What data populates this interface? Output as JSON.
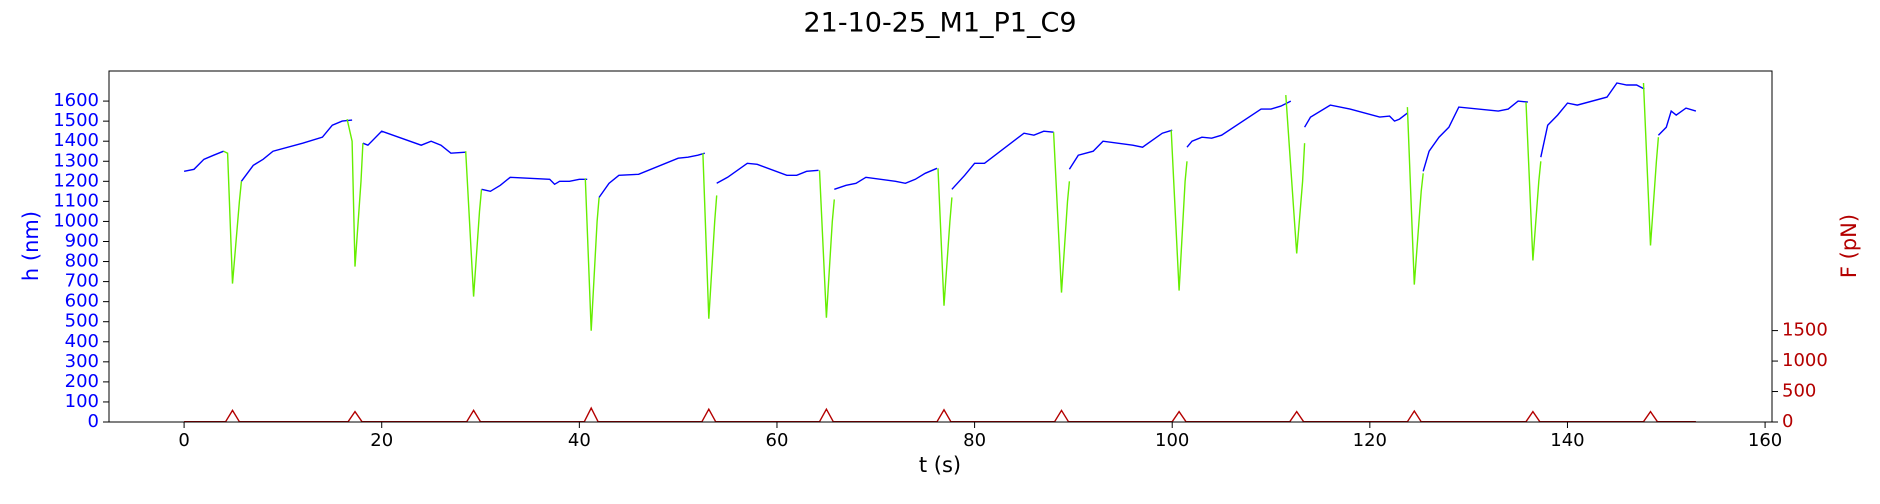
{
  "chart_data": {
    "type": "line",
    "title": "21-10-25_M1_P1_C9",
    "x_label": "t (s)",
    "y_label": "h (nm)",
    "y2_label": "F (pN)",
    "xlim": [
      -7.6,
      160.7
    ],
    "xticks": [
      0,
      20,
      40,
      60,
      80,
      100,
      120,
      140,
      160
    ],
    "ylim": [
      0,
      1750
    ],
    "yticks": [
      0,
      100,
      200,
      300,
      400,
      500,
      600,
      700,
      800,
      900,
      1000,
      1100,
      1200,
      1300,
      1400,
      1500,
      1600
    ],
    "y2lim": [
      0,
      5760
    ],
    "y2ticks": [
      0,
      500,
      1000,
      1500
    ],
    "series": [
      {
        "color": "#0000ff",
        "x": [
          0,
          1,
          2,
          3,
          4,
          null,
          5.8,
          7,
          8,
          9,
          12,
          14,
          15,
          16,
          17,
          null,
          18.1,
          18.6,
          20,
          24,
          25,
          26,
          27,
          28.5,
          null,
          30.1,
          31,
          32,
          33,
          37,
          37.5,
          38,
          39,
          40,
          40.8,
          null,
          42,
          43,
          44,
          46,
          50,
          51,
          52,
          52.7,
          null,
          53.9,
          55,
          57,
          58,
          61,
          62,
          63,
          64.2,
          null,
          65.8,
          67,
          68,
          69,
          72,
          73,
          74,
          75,
          76.2,
          null,
          77.7,
          79,
          80,
          81,
          85,
          86,
          87,
          88,
          null,
          89.6,
          90.5,
          92,
          93,
          96,
          97,
          99,
          100,
          null,
          101.5,
          102,
          103,
          104,
          105,
          109,
          110,
          111,
          112,
          null,
          113.4,
          114,
          116,
          118,
          121,
          122,
          122.5,
          123,
          123.8,
          null,
          125.4,
          126,
          127,
          128,
          129,
          133,
          134,
          135,
          136,
          null,
          137.3,
          138,
          139,
          140,
          141,
          144,
          145,
          146,
          147,
          147.8,
          null,
          149.2,
          150,
          150.5,
          151,
          152,
          153
        ],
        "values": [
          1250,
          1260,
          1310,
          1330,
          1350,
          null,
          1200,
          1280,
          1310,
          1350,
          1390,
          1420,
          1480,
          1500,
          1505,
          null,
          1390,
          1380,
          1450,
          1380,
          1400,
          1380,
          1340,
          1345,
          null,
          1160,
          1150,
          1180,
          1220,
          1210,
          1185,
          1200,
          1200,
          1210,
          1210,
          null,
          1120,
          1190,
          1230,
          1235,
          1315,
          1320,
          1330,
          1340,
          null,
          1190,
          1220,
          1290,
          1285,
          1230,
          1230,
          1250,
          1255,
          null,
          1160,
          1180,
          1190,
          1220,
          1200,
          1190,
          1210,
          1240,
          1265,
          null,
          1160,
          1230,
          1290,
          1290,
          1440,
          1430,
          1450,
          1445,
          null,
          1260,
          1330,
          1350,
          1400,
          1380,
          1370,
          1440,
          1455,
          null,
          1370,
          1400,
          1420,
          1415,
          1430,
          1560,
          1560,
          1575,
          1600,
          null,
          1470,
          1520,
          1580,
          1560,
          1520,
          1525,
          1500,
          1510,
          1540,
          null,
          1250,
          1350,
          1420,
          1470,
          1570,
          1550,
          1560,
          1600,
          1595,
          null,
          1320,
          1480,
          1530,
          1590,
          1580,
          1620,
          1690,
          1680,
          1680,
          1660,
          null,
          1430,
          1470,
          1550,
          1530,
          1565,
          1550
        ]
      },
      {
        "color": "#66ee00",
        "x": [
          4,
          4.4,
          4.9,
          5.6,
          5.8,
          null,
          16.5,
          17,
          17.3,
          17.9,
          18.1,
          null,
          28.5,
          29.3,
          29.9,
          30.1,
          null,
          40.6,
          41.2,
          41.8,
          42,
          null,
          52.5,
          53.1,
          53.7,
          53.9,
          null,
          64.3,
          65,
          65.6,
          65.8,
          null,
          76.3,
          76.9,
          77.5,
          77.7,
          null,
          88,
          88.8,
          89.4,
          89.6,
          null,
          99.9,
          100.7,
          101.3,
          101.5,
          null,
          111.5,
          112.6,
          113.2,
          113.4,
          null,
          123.8,
          124.5,
          125.2,
          125.4,
          null,
          135.8,
          136.5,
          137.1,
          137.3,
          null,
          147.7,
          148.4,
          149,
          149.2
        ],
        "values": [
          1350,
          1340,
          690,
          1100,
          1200,
          null,
          1510,
          1400,
          775,
          1200,
          1390,
          null,
          1350,
          625,
          1050,
          1160,
          null,
          1215,
          455,
          1000,
          1120,
          null,
          1340,
          515,
          1000,
          1130,
          null,
          1255,
          520,
          1000,
          1110,
          null,
          1265,
          580,
          1000,
          1120,
          null,
          1445,
          645,
          1100,
          1200,
          null,
          1455,
          655,
          1200,
          1300,
          null,
          1630,
          840,
          1200,
          1390,
          null,
          1570,
          685,
          1150,
          1240,
          null,
          1595,
          805,
          1200,
          1300,
          null,
          1690,
          880,
          1300,
          1420
        ]
      },
      {
        "color": "#b40000",
        "axis": "y2",
        "x": [
          0,
          4.2,
          4.9,
          5.6,
          16.6,
          17.3,
          18,
          28.6,
          29.3,
          30,
          40.5,
          41.2,
          41.9,
          52.4,
          53.1,
          53.8,
          64.3,
          65,
          65.7,
          76.2,
          76.9,
          77.6,
          88.1,
          88.8,
          89.5,
          100,
          100.7,
          101.4,
          111.9,
          112.6,
          113.3,
          123.8,
          124.5,
          125.2,
          135.8,
          136.5,
          137.2,
          147.7,
          148.4,
          149.1,
          153
        ],
        "values": [
          5,
          5,
          190,
          5,
          5,
          170,
          5,
          5,
          190,
          5,
          5,
          230,
          5,
          5,
          210,
          5,
          5,
          210,
          5,
          5,
          200,
          5,
          5,
          190,
          5,
          5,
          170,
          5,
          5,
          170,
          5,
          5,
          180,
          5,
          5,
          170,
          5,
          5,
          170,
          5,
          5
        ]
      }
    ]
  }
}
